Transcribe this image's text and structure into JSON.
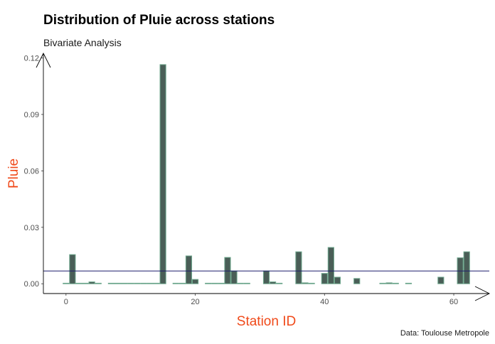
{
  "title": "Distribution of Pluie across stations",
  "subtitle": "Bivariate Analysis",
  "caption": "Data: Toulouse Metropole",
  "colors": {
    "bar_fill": "#4a5e57",
    "bar_stroke": "#6fa88e",
    "mean_line": "#1f1f6e",
    "axis_title": "#f04a1a",
    "tick_text": "#4d4d4d",
    "axis": "#000000"
  },
  "chart_data": {
    "type": "bar",
    "title": "Distribution of Pluie across stations",
    "subtitle": "Bivariate Analysis",
    "xlabel": "Station ID",
    "ylabel": "Pluie",
    "xlim": [
      -3.5,
      65.5
    ],
    "ylim": [
      -0.0052,
      0.1225
    ],
    "x_ticks": [
      0,
      20,
      40,
      60
    ],
    "x_tick_labels": [
      "0",
      "20",
      "40",
      "60"
    ],
    "y_ticks": [
      0.0,
      0.03,
      0.06,
      0.09,
      0.12
    ],
    "y_tick_labels": [
      "0.00",
      "0.03",
      "0.06",
      "0.09",
      "0.12"
    ],
    "grid": false,
    "mean_line": 0.0068,
    "x": [
      0,
      1,
      2,
      3,
      4,
      5,
      7,
      8,
      9,
      10,
      11,
      12,
      13,
      14,
      15,
      17,
      18,
      19,
      20,
      22,
      23,
      24,
      25,
      26,
      27,
      28,
      31,
      32,
      33,
      36,
      37,
      38,
      40,
      41,
      42,
      45,
      49,
      50,
      51,
      53,
      58,
      61,
      62
    ],
    "values": [
      0,
      0.0155,
      0,
      0,
      0.001,
      0,
      0,
      0,
      0,
      0,
      0,
      0,
      0,
      0,
      0.1165,
      0,
      0,
      0.0148,
      0.0023,
      0,
      0,
      0,
      0.014,
      0.0068,
      0,
      0,
      0.0068,
      0.001,
      0,
      0.017,
      0.0005,
      0,
      0.0055,
      0.0193,
      0.0035,
      0.0028,
      0,
      0.0005,
      0,
      0,
      0.0035,
      0.0138,
      0.017
    ]
  }
}
